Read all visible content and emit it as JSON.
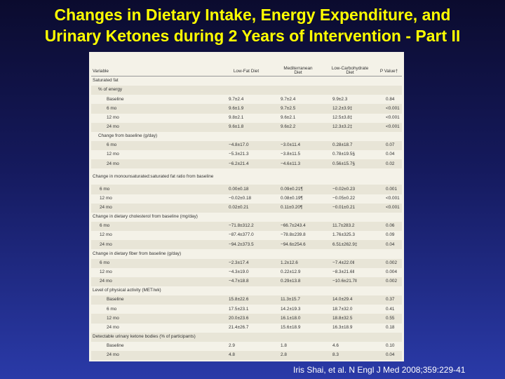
{
  "slide": {
    "title_line1": "Changes in Dietary Intake, Energy Expenditure, and",
    "title_line2": "Urinary Ketones during 2 Years of Intervention - Part II",
    "citation": "Iris Shai,  et al. N Engl J Med 2008;359:229-41"
  },
  "table": {
    "headers": {
      "variable": "Variable",
      "low_fat": "Low-Fat Diet",
      "mediterranean": "Mediterranean Diet",
      "low_carb": "Low-Carbohydrate Diet",
      "p_value": "P Value†"
    },
    "rows": [
      {
        "label": "Saturated fat",
        "indent": 0,
        "lf": "",
        "med": "",
        "lc": "",
        "p": ""
      },
      {
        "label": "% of energy",
        "indent": 1,
        "lf": "",
        "med": "",
        "lc": "",
        "p": ""
      },
      {
        "label": "Baseline",
        "indent": 2,
        "lf": "9.7±2.4",
        "med": "9.7±2.4",
        "lc": "9.9±2.3",
        "p": "0.84"
      },
      {
        "label": "6 mo",
        "indent": 2,
        "lf": "9.6±1.9",
        "med": "9.7±2.5",
        "lc": "12.2±3.9‡",
        "p": "<0.001"
      },
      {
        "label": "12 mo",
        "indent": 2,
        "lf": "9.8±2.1",
        "med": "9.6±2.1",
        "lc": "12.5±3.8‡",
        "p": "<0.001"
      },
      {
        "label": "24 mo",
        "indent": 2,
        "lf": "9.6±1.8",
        "med": "9.6±2.2",
        "lc": "12.3±3.2‡",
        "p": "<0.001"
      },
      {
        "label": "Change from baseline (g/day)",
        "indent": 1,
        "lf": "",
        "med": "",
        "lc": "",
        "p": ""
      },
      {
        "label": "6 mo",
        "indent": 2,
        "lf": "−4.8±17.0",
        "med": "−3.0±11.4",
        "lc": "0.28±18.7",
        "p": "0.07"
      },
      {
        "label": "12 mo",
        "indent": 2,
        "lf": "−5.3±21.3",
        "med": "−3.8±11.5",
        "lc": "0.78±19.5§",
        "p": "0.04"
      },
      {
        "label": "24 mo",
        "indent": 2,
        "lf": "−6.2±21.4",
        "med": "−4.6±11.3",
        "lc": "0.56±15.7§",
        "p": "0.02"
      },
      {
        "label": "Change in monounsaturated:saturated fat ratio from baseline",
        "indent": 0,
        "wrap": true,
        "lf": "",
        "med": "",
        "lc": "",
        "p": ""
      },
      {
        "label": "6 mo",
        "indent": 3,
        "lf": "0.00±0.18",
        "med": "0.09±0.21¶",
        "lc": "−0.02±0.23",
        "p": "0.001"
      },
      {
        "label": "12 mo",
        "indent": 3,
        "lf": "−0.02±0.18",
        "med": "0.08±0.19¶",
        "lc": "−0.05±0.22",
        "p": "<0.001"
      },
      {
        "label": "24 mo",
        "indent": 3,
        "lf": "0.02±0.21",
        "med": "0.11±0.20¶",
        "lc": "−0.01±0.21",
        "p": "<0.001"
      },
      {
        "label": "Change in dietary cholesterol from baseline (mg/day)",
        "indent": 0,
        "lf": "",
        "med": "",
        "lc": "",
        "p": ""
      },
      {
        "label": "6 mo",
        "indent": 3,
        "lf": "−71.8±312.2",
        "med": "−66.7±243.4",
        "lc": "11.7±283.2",
        "p": "0.06"
      },
      {
        "label": "12 mo",
        "indent": 3,
        "lf": "−87.4±377.0",
        "med": "−78.8±239.8",
        "lc": "1.76±325.3",
        "p": "0.09"
      },
      {
        "label": "24 mo",
        "indent": 3,
        "lf": "−94.2±373.5",
        "med": "−94.6±254.6",
        "lc": "6.51±262.9‡",
        "p": "0.04"
      },
      {
        "label": "Change in dietary fiber from baseline (g/day)",
        "indent": 0,
        "lf": "",
        "med": "",
        "lc": "",
        "p": ""
      },
      {
        "label": "6 mo",
        "indent": 3,
        "lf": "−2.3±17.4",
        "med": "1.2±12.6",
        "lc": "−7.4±22.0‖",
        "p": "0.002"
      },
      {
        "label": "12 mo",
        "indent": 3,
        "lf": "−4.3±19.0",
        "med": "0.22±12.9",
        "lc": "−8.3±21.6‖",
        "p": "0.004"
      },
      {
        "label": "24 mo",
        "indent": 3,
        "lf": "−4.7±18.8",
        "med": "0.29±13.8",
        "lc": "−10.6±21.7‖",
        "p": "0.002"
      },
      {
        "label": "Level of physical activity (MET/wk)",
        "indent": 0,
        "lf": "",
        "med": "",
        "lc": "",
        "p": ""
      },
      {
        "label": "Baseline",
        "indent": 2,
        "lf": "15.8±22.6",
        "med": "11.3±15.7",
        "lc": "14.0±29.4",
        "p": "0.37"
      },
      {
        "label": "6 mo",
        "indent": 2,
        "lf": "17.5±23.1",
        "med": "14.2±19.3",
        "lc": "18.7±32.0",
        "p": "0.41"
      },
      {
        "label": "12 mo",
        "indent": 2,
        "lf": "20.0±23.6",
        "med": "16.1±18.0",
        "lc": "18.8±32.5",
        "p": "0.55"
      },
      {
        "label": "24 mo",
        "indent": 2,
        "lf": "21.4±26.7",
        "med": "15.6±18.9",
        "lc": "16.3±18.9",
        "p": "0.18"
      },
      {
        "label": "Detectable urinary ketone bodies (% of participants)",
        "indent": 0,
        "lf": "",
        "med": "",
        "lc": "",
        "p": ""
      },
      {
        "label": "Baseline",
        "indent": 2,
        "lf": "2.9",
        "med": "1.8",
        "lc": "4.6",
        "p": "0.10"
      },
      {
        "label": "24 mo",
        "indent": 2,
        "lf": "4.8",
        "med": "2.8",
        "lc": "8.3",
        "p": "0.04"
      }
    ]
  }
}
